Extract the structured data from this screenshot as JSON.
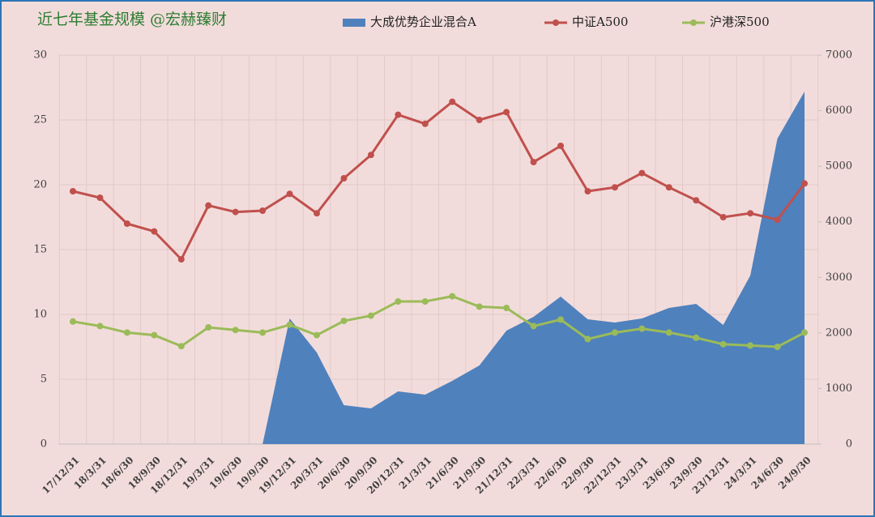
{
  "chart_data": {
    "type": "combo",
    "title": "近七年基金规模 @宏赫臻财",
    "categories": [
      "17/12/31",
      "18/3/31",
      "18/6/30",
      "18/9/30",
      "18/12/31",
      "19/3/31",
      "19/6/30",
      "19/9/30",
      "19/12/31",
      "20/3/31",
      "20/6/30",
      "20/9/30",
      "20/12/31",
      "21/3/31",
      "21/6/30",
      "21/9/30",
      "21/12/31",
      "22/3/31",
      "22/6/30",
      "22/9/30",
      "22/12/31",
      "23/3/31",
      "23/6/30",
      "23/9/30",
      "23/12/31",
      "24/3/31",
      "24/6/30",
      "24/9/30"
    ],
    "series": [
      {
        "name": "大成优势企业混合A",
        "type": "area",
        "axis": "y2",
        "color": "#4f81bd",
        "values": [
          0,
          0,
          0,
          0,
          0,
          0,
          0,
          0,
          2260,
          1648,
          700,
          642,
          948,
          890,
          1138,
          1415,
          2042,
          2290,
          2654,
          2246,
          2188,
          2260,
          2450,
          2523,
          2144,
          3033,
          5498,
          6344
        ]
      },
      {
        "name": "中证A500",
        "type": "line",
        "color": "#c0504d",
        "values": [
          19.5,
          19.0,
          17.0,
          16.4,
          14.25,
          18.4,
          17.9,
          18.0,
          19.3,
          17.8,
          20.5,
          22.3,
          25.4,
          24.7,
          26.4,
          25.0,
          25.6,
          21.75,
          23.0,
          19.5,
          19.8,
          20.9,
          19.8,
          18.8,
          17.5,
          17.8,
          17.3,
          20.1
        ]
      },
      {
        "name": "沪港深500",
        "type": "line",
        "color": "#9bbb59",
        "values": [
          9.45,
          9.1,
          8.6,
          8.4,
          7.55,
          9.0,
          8.8,
          8.6,
          9.2,
          8.4,
          9.5,
          9.9,
          11.0,
          11.0,
          11.4,
          10.6,
          10.5,
          9.1,
          9.6,
          8.1,
          8.6,
          8.9,
          8.6,
          8.2,
          7.7,
          7.6,
          7.5,
          8.6
        ]
      }
    ],
    "ylim": [
      0,
      30
    ],
    "yticks": [
      0,
      5,
      10,
      15,
      20,
      25,
      30
    ],
    "y2lim": [
      0,
      7000
    ],
    "y2ticks": [
      0,
      1000,
      2000,
      3000,
      4000,
      5000,
      6000,
      7000
    ],
    "grid": true,
    "legend": "top"
  }
}
